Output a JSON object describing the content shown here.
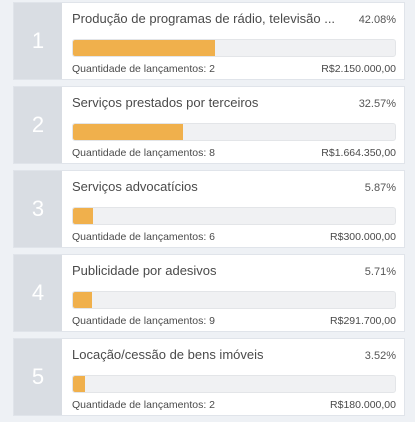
{
  "items": [
    {
      "rank": "1",
      "title": "Produção de programas de rádio, televisão ...",
      "percent": "42.08%",
      "percent_value": 42.08,
      "count_label": "Quantidade de lançamentos: 2",
      "amount": "R$2.150.000,00"
    },
    {
      "rank": "2",
      "title": "Serviços prestados por terceiros",
      "percent": "32.57%",
      "percent_value": 32.57,
      "count_label": "Quantidade de lançamentos: 8",
      "amount": "R$1.664.350,00"
    },
    {
      "rank": "3",
      "title": "Serviços advocatícios",
      "percent": "5.87%",
      "percent_value": 5.87,
      "count_label": "Quantidade de lançamentos: 6",
      "amount": "R$300.000,00"
    },
    {
      "rank": "4",
      "title": "Publicidade por adesivos",
      "percent": "5.71%",
      "percent_value": 5.71,
      "count_label": "Quantidade de lançamentos: 9",
      "amount": "R$291.700,00"
    },
    {
      "rank": "5",
      "title": "Locação/cessão de bens imóveis",
      "percent": "3.52%",
      "percent_value": 3.52,
      "count_label": "Quantidade de lançamentos: 2",
      "amount": "R$180.000,00"
    }
  ],
  "colors": {
    "bar_fill": "#f0b04c",
    "rank_bg": "#d9dde3",
    "bar_track": "#f0f1f3"
  }
}
